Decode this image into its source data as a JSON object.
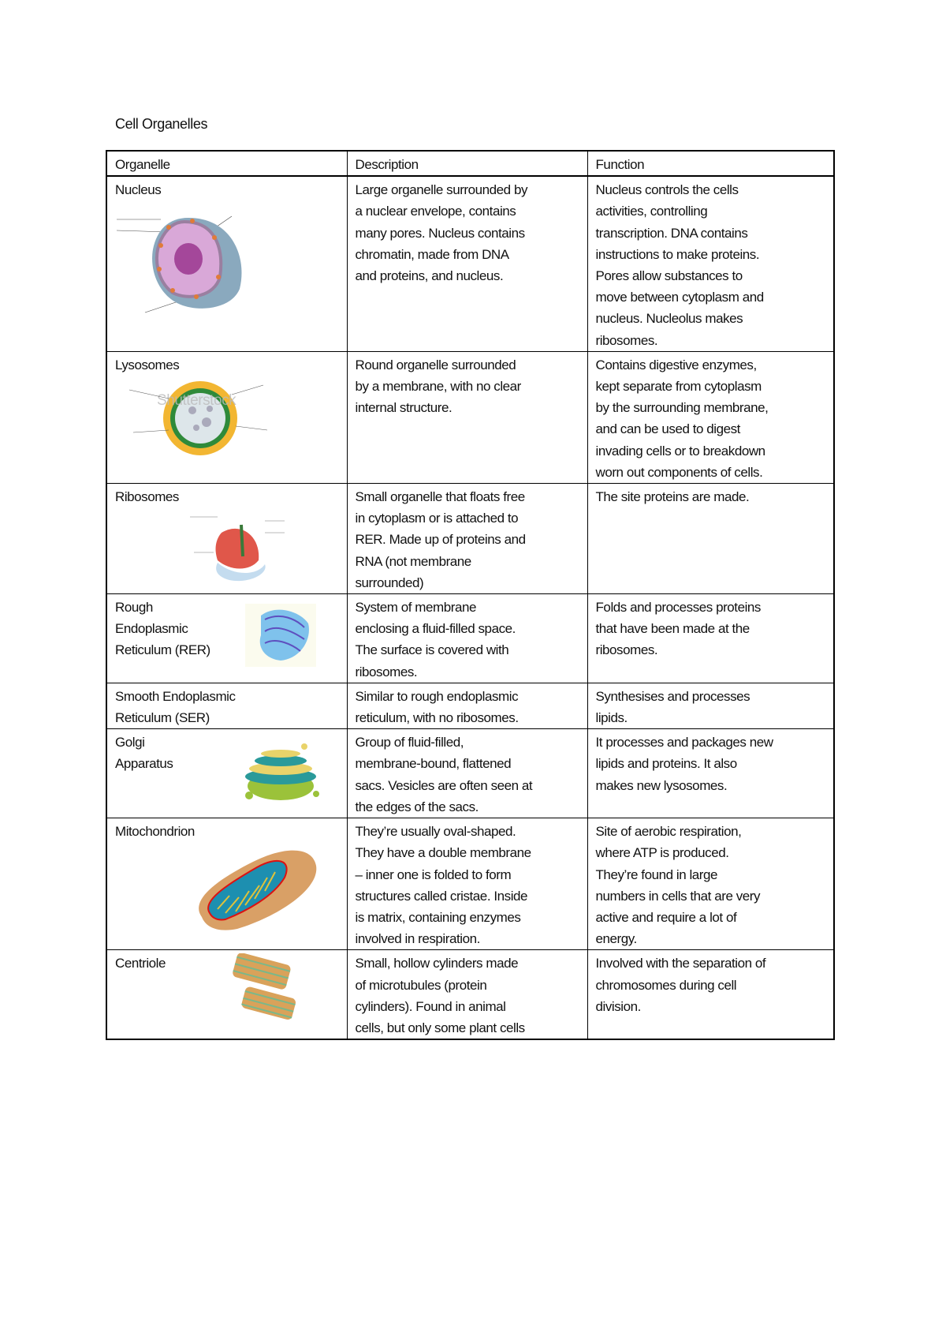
{
  "title": "Cell Organelles",
  "headers": [
    "Organelle",
    "Description",
    "Function"
  ],
  "rows": [
    {
      "organelle": [
        "Nucleus"
      ],
      "image": "nucleus-diagram",
      "description": [
        "Large organelle surrounded by",
        "a nuclear envelope, contains",
        "many pores. Nucleus contains",
        "chromatin, made from DNA",
        "and proteins, and nucleus."
      ],
      "function": [
        "Nucleus controls the cells",
        "activities, controlling",
        "transcription. DNA contains",
        "instructions to make proteins.",
        "Pores allow substances to",
        "move between cytoplasm and",
        "nucleus. Nucleolus makes",
        "ribosomes."
      ]
    },
    {
      "organelle": [
        "Lysosomes"
      ],
      "image": "lysosome-diagram",
      "description": [
        "Round organelle surrounded",
        "by a membrane, with no clear",
        "internal structure."
      ],
      "function": [
        "Contains digestive enzymes,",
        "kept separate from cytoplasm",
        "by the surrounding membrane,",
        "and can be used to digest",
        "invading cells or to breakdown",
        "worn out components of cells."
      ]
    },
    {
      "organelle": [
        "Ribosomes"
      ],
      "image": "ribosome-diagram",
      "description": [
        "Small organelle that floats free",
        "in cytoplasm or is attached to",
        "RER. Made up of proteins and",
        "RNA (not membrane",
        "surrounded)"
      ],
      "function": [
        "The site proteins are made."
      ]
    },
    {
      "organelle": [
        "Rough",
        "Endoplasmic",
        "Reticulum (RER)"
      ],
      "image": "rer-diagram",
      "description": [
        "System of membrane",
        "enclosing a fluid-filled space.",
        "The surface is covered with",
        "ribosomes."
      ],
      "function": [
        "Folds and processes proteins",
        "that have been made at the",
        "ribosomes."
      ]
    },
    {
      "organelle": [
        "Smooth Endoplasmic",
        "Reticulum (SER)"
      ],
      "image": "",
      "description": [
        "Similar to rough endoplasmic",
        "reticulum, with no ribosomes."
      ],
      "function": [
        "Synthesises and processes",
        "lipids."
      ]
    },
    {
      "organelle": [
        "Golgi",
        "Apparatus"
      ],
      "image": "golgi-diagram",
      "description": [
        "Group of fluid-filled,",
        "membrane-bound, flattened",
        "sacs. Vesicles are often seen at",
        "the edges of the sacs."
      ],
      "function": [
        "It processes and packages new",
        "lipids and proteins. It also",
        "makes new lysosomes."
      ]
    },
    {
      "organelle": [
        "Mitochondrion"
      ],
      "image": "mitochondrion-diagram",
      "description": [
        "They’re usually oval-shaped.",
        "They have a double membrane",
        "– inner one is folded to form",
        "structures called cristae. Inside",
        "is matrix, containing enzymes",
        "involved in respiration."
      ],
      "function": [
        "Site of aerobic respiration,",
        "where ATP is produced.",
        "They’re found in large",
        "numbers in cells that are very",
        "active and require a lot of",
        "energy."
      ]
    },
    {
      "organelle": [
        "Centriole"
      ],
      "image": "centriole-diagram",
      "description": [
        "Small, hollow cylinders made",
        "of microtubules (protein",
        "cylinders). Found in animal",
        "cells, but only some plant cells"
      ],
      "function": [
        "Involved with the separation of",
        "chromosomes during cell",
        "division."
      ]
    }
  ],
  "watermark": "Shutterstock"
}
